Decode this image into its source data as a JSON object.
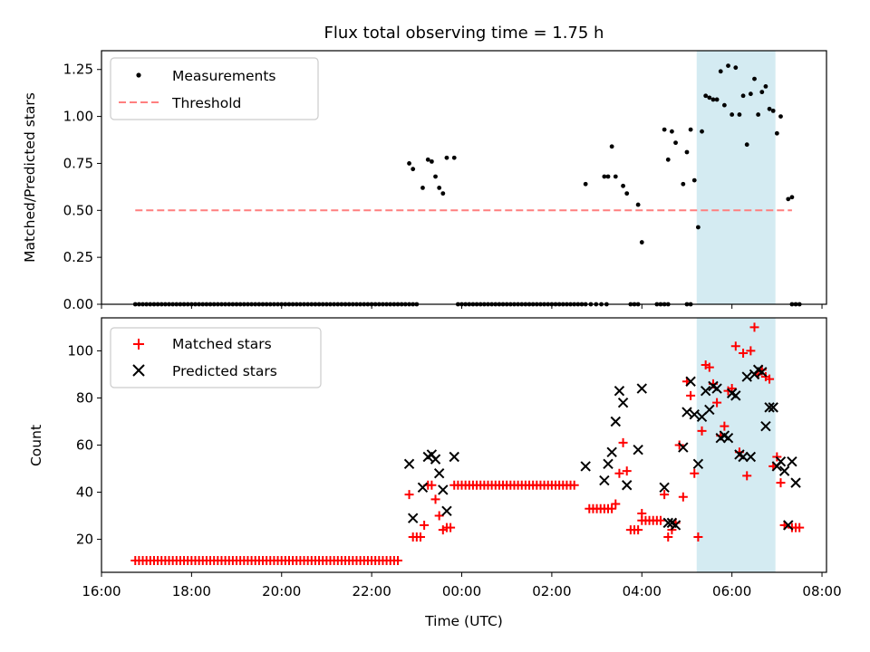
{
  "chart_data": [
    {
      "type": "scatter",
      "title": "Flux total observing time = 1.75 h",
      "xlabel": "",
      "ylabel": "Matched/Predicted stars",
      "xlim": [
        16.0,
        8.1
      ],
      "ylim": [
        0.0,
        1.35
      ],
      "yticks": [
        0.0,
        0.25,
        0.5,
        0.75,
        1.0,
        1.25
      ],
      "ytick_labels": [
        "0.00",
        "0.25",
        "0.50",
        "0.75",
        "1.00",
        "1.25"
      ],
      "shaded_interval": [
        "05:13",
        "06:58"
      ],
      "shade_color": "#add8e6",
      "legend": {
        "location": "upper-left",
        "entries": [
          {
            "label": "Measurements",
            "marker": "dot",
            "color": "#000000"
          },
          {
            "label": "Threshold",
            "marker": "dashed-line",
            "color": "#ff7f7f"
          }
        ]
      },
      "threshold": {
        "value": 0.5,
        "x_range": [
          "16:45",
          "07:20"
        ],
        "color": "#ff7f7f"
      },
      "series": [
        {
          "name": "Measurements",
          "color": "#000000",
          "zero_runs": [
            [
              "16:45",
              "22:45",
              0.0833
            ],
            [
              "23:55",
              "02:40",
              0.0833
            ]
          ],
          "zero_points": [
            "22:50",
            "22:55",
            "23:00",
            "02:45",
            "02:52",
            "02:59",
            "03:06",
            "03:13",
            "03:45",
            "03:50",
            "03:55",
            "04:20",
            "04:25",
            "04:30",
            "04:35",
            "05:00",
            "05:05",
            "07:20",
            "07:25",
            "07:30"
          ],
          "points": [
            [
              "22:50",
              0.75
            ],
            [
              "22:55",
              0.72
            ],
            [
              "23:08",
              0.62
            ],
            [
              "23:15",
              0.77
            ],
            [
              "23:20",
              0.76
            ],
            [
              "23:25",
              0.68
            ],
            [
              "23:30",
              0.62
            ],
            [
              "23:35",
              0.59
            ],
            [
              "23:40",
              0.78
            ],
            [
              "23:50",
              0.78
            ],
            [
              "02:45",
              0.64
            ],
            [
              "03:10",
              0.68
            ],
            [
              "03:15",
              0.68
            ],
            [
              "03:20",
              0.84
            ],
            [
              "03:25",
              0.68
            ],
            [
              "03:35",
              0.63
            ],
            [
              "03:40",
              0.59
            ],
            [
              "03:55",
              0.53
            ],
            [
              "04:00",
              0.33
            ],
            [
              "04:30",
              0.93
            ],
            [
              "04:35",
              0.77
            ],
            [
              "04:40",
              0.92
            ],
            [
              "04:45",
              0.86
            ],
            [
              "04:55",
              0.64
            ],
            [
              "05:00",
              0.81
            ],
            [
              "05:05",
              0.93
            ],
            [
              "05:10",
              0.66
            ],
            [
              "05:15",
              0.41
            ],
            [
              "05:20",
              0.92
            ],
            [
              "05:25",
              1.11
            ],
            [
              "05:30",
              1.1
            ],
            [
              "05:35",
              1.09
            ],
            [
              "05:40",
              1.09
            ],
            [
              "05:45",
              1.24
            ],
            [
              "05:50",
              1.06
            ],
            [
              "05:55",
              1.27
            ],
            [
              "06:00",
              1.01
            ],
            [
              "06:05",
              1.26
            ],
            [
              "06:10",
              1.01
            ],
            [
              "06:15",
              1.11
            ],
            [
              "06:20",
              0.85
            ],
            [
              "06:25",
              1.12
            ],
            [
              "06:30",
              1.2
            ],
            [
              "06:35",
              1.01
            ],
            [
              "06:40",
              1.13
            ],
            [
              "06:45",
              1.16
            ],
            [
              "06:50",
              1.04
            ],
            [
              "06:55",
              1.03
            ],
            [
              "07:00",
              0.91
            ],
            [
              "07:05",
              1.0
            ],
            [
              "07:15",
              0.56
            ],
            [
              "07:20",
              0.57
            ]
          ]
        }
      ]
    },
    {
      "type": "scatter",
      "title": "",
      "xlabel": "Time (UTC)",
      "ylabel": "Count",
      "xlim": [
        16.0,
        8.1
      ],
      "ylim": [
        6,
        114
      ],
      "xticks": [
        "16:00",
        "18:00",
        "20:00",
        "22:00",
        "00:00",
        "02:00",
        "04:00",
        "06:00",
        "08:00"
      ],
      "yticks": [
        20,
        40,
        60,
        80,
        100
      ],
      "ytick_labels": [
        "20",
        "40",
        "60",
        "80",
        "100"
      ],
      "shaded_interval": [
        "05:13",
        "06:58"
      ],
      "shade_color": "#add8e6",
      "legend": {
        "location": "upper-left",
        "entries": [
          {
            "label": "Matched stars",
            "marker": "plus",
            "color": "#ff0000"
          },
          {
            "label": "Predicted stars",
            "marker": "x",
            "color": "#000000"
          }
        ]
      },
      "series": [
        {
          "name": "Matched stars",
          "marker": "plus",
          "color": "#ff0000",
          "runs": [
            [
              "16:45",
              "22:35",
              11,
              0.0833
            ],
            [
              "00:00",
              "02:30",
              43,
              0.0833
            ],
            [
              "02:50",
              "03:20",
              33,
              0.0833
            ],
            [
              "04:00",
              "04:25",
              28,
              0.0833
            ]
          ],
          "points": [
            [
              "22:50",
              39
            ],
            [
              "22:55",
              21
            ],
            [
              "23:00",
              21
            ],
            [
              "23:05",
              21
            ],
            [
              "23:10",
              26
            ],
            [
              "23:15",
              43
            ],
            [
              "23:20",
              43
            ],
            [
              "23:25",
              37
            ],
            [
              "23:30",
              30
            ],
            [
              "23:35",
              24
            ],
            [
              "23:40",
              25
            ],
            [
              "23:45",
              25
            ],
            [
              "23:50",
              43
            ],
            [
              "23:55",
              43
            ],
            [
              "03:25",
              35
            ],
            [
              "03:30",
              48
            ],
            [
              "03:35",
              61
            ],
            [
              "03:40",
              49
            ],
            [
              "03:45",
              24
            ],
            [
              "03:50",
              24
            ],
            [
              "03:55",
              24
            ],
            [
              "04:00",
              31
            ],
            [
              "04:30",
              39
            ],
            [
              "04:35",
              21
            ],
            [
              "04:40",
              24
            ],
            [
              "04:45",
              27
            ],
            [
              "04:50",
              60
            ],
            [
              "04:55",
              38
            ],
            [
              "05:00",
              87
            ],
            [
              "05:05",
              81
            ],
            [
              "05:10",
              48
            ],
            [
              "05:15",
              21
            ],
            [
              "05:20",
              66
            ],
            [
              "05:25",
              94
            ],
            [
              "05:30",
              93
            ],
            [
              "05:35",
              86
            ],
            [
              "05:40",
              78
            ],
            [
              "05:45",
              64
            ],
            [
              "05:50",
              68
            ],
            [
              "05:55",
              83
            ],
            [
              "06:00",
              84
            ],
            [
              "06:05",
              102
            ],
            [
              "06:10",
              57
            ],
            [
              "06:15",
              99
            ],
            [
              "06:20",
              47
            ],
            [
              "06:25",
              100
            ],
            [
              "06:30",
              110
            ],
            [
              "06:35",
              90
            ],
            [
              "06:40",
              92
            ],
            [
              "06:45",
              89
            ],
            [
              "06:50",
              88
            ],
            [
              "06:55",
              51
            ],
            [
              "07:00",
              55
            ],
            [
              "07:05",
              44
            ],
            [
              "07:10",
              26
            ],
            [
              "07:20",
              25
            ],
            [
              "07:25",
              25
            ],
            [
              "07:30",
              25
            ]
          ]
        },
        {
          "name": "Predicted stars",
          "marker": "x",
          "color": "#000000",
          "points": [
            [
              "22:50",
              52
            ],
            [
              "22:55",
              29
            ],
            [
              "23:08",
              42
            ],
            [
              "23:15",
              55
            ],
            [
              "23:20",
              56
            ],
            [
              "23:25",
              54
            ],
            [
              "23:30",
              48
            ],
            [
              "23:35",
              41
            ],
            [
              "23:40",
              32
            ],
            [
              "23:50",
              55
            ],
            [
              "02:45",
              51
            ],
            [
              "03:10",
              45
            ],
            [
              "03:15",
              52
            ],
            [
              "03:20",
              57
            ],
            [
              "03:25",
              70
            ],
            [
              "03:30",
              83
            ],
            [
              "03:35",
              78
            ],
            [
              "03:40",
              43
            ],
            [
              "03:55",
              58
            ],
            [
              "04:00",
              84
            ],
            [
              "04:30",
              42
            ],
            [
              "04:35",
              27
            ],
            [
              "04:40",
              27
            ],
            [
              "04:45",
              26
            ],
            [
              "04:55",
              59
            ],
            [
              "05:00",
              74
            ],
            [
              "05:05",
              87
            ],
            [
              "05:10",
              73
            ],
            [
              "05:15",
              52
            ],
            [
              "05:20",
              72
            ],
            [
              "05:25",
              83
            ],
            [
              "05:30",
              75
            ],
            [
              "05:35",
              85
            ],
            [
              "05:40",
              84
            ],
            [
              "05:45",
              63
            ],
            [
              "05:50",
              64
            ],
            [
              "05:55",
              63
            ],
            [
              "06:00",
              82
            ],
            [
              "06:05",
              81
            ],
            [
              "06:10",
              56
            ],
            [
              "06:15",
              55
            ],
            [
              "06:20",
              89
            ],
            [
              "06:25",
              55
            ],
            [
              "06:30",
              90
            ],
            [
              "06:35",
              92
            ],
            [
              "06:40",
              91
            ],
            [
              "06:45",
              68
            ],
            [
              "06:50",
              76
            ],
            [
              "06:55",
              76
            ],
            [
              "07:00",
              51
            ],
            [
              "07:05",
              53
            ],
            [
              "07:10",
              49
            ],
            [
              "07:15",
              26
            ],
            [
              "07:20",
              53
            ],
            [
              "07:25",
              44
            ]
          ]
        }
      ]
    }
  ]
}
